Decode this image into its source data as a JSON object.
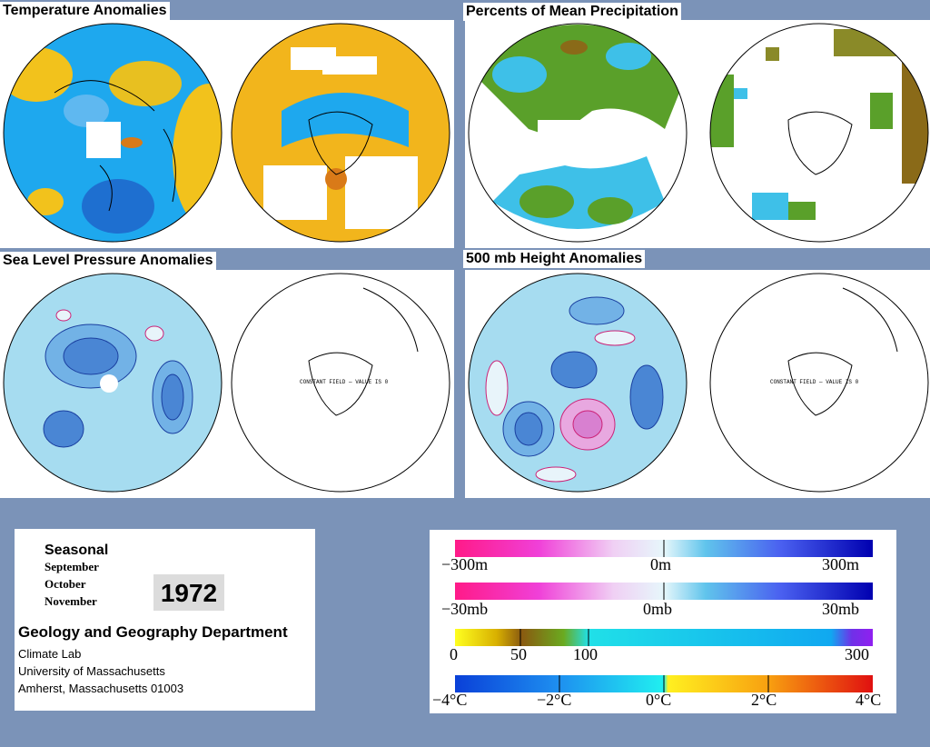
{
  "panels": {
    "temperature": {
      "title": "Temperature Anomalies"
    },
    "precipitation": {
      "title": "Percents of Mean Precipitation"
    },
    "slp": {
      "title": "Sea Level Pressure Anomalies",
      "constant_note": "CONSTANT FIELD — VALUE IS 0"
    },
    "height500": {
      "title": "500 mb Height Anomalies",
      "constant_note": "CONSTANT FIELD — VALUE IS 0"
    }
  },
  "info": {
    "seasonal": "Seasonal",
    "months": [
      "September",
      "October",
      "November"
    ],
    "year": "1972",
    "department": "Geology and Geography Department",
    "lines": [
      "Climate Lab",
      "University of Massachusetts",
      "Amherst, Massachusetts 01003"
    ]
  },
  "legend": {
    "height": {
      "min": "−300m",
      "mid": "0m",
      "max": "300m"
    },
    "pressure": {
      "min": "−30mb",
      "mid": "0mb",
      "max": "30mb"
    },
    "precip": {
      "l0": "0",
      "l50": "50",
      "l100": "100",
      "l300": "300"
    },
    "temp": {
      "m4": "−4°C",
      "m2": "−2°C",
      "z": "0°C",
      "p2": "2°C",
      "p4": "4°C"
    }
  },
  "colors": {
    "background": "#7b93b8",
    "temp_cold": "#1e8fe8",
    "temp_warm": "#f2b51c",
    "precip_green": "#5aa02a",
    "anomaly_fill": "#a6dcf0",
    "negative_contour": "#cc2277",
    "positive_contour": "#1a3fa0"
  }
}
